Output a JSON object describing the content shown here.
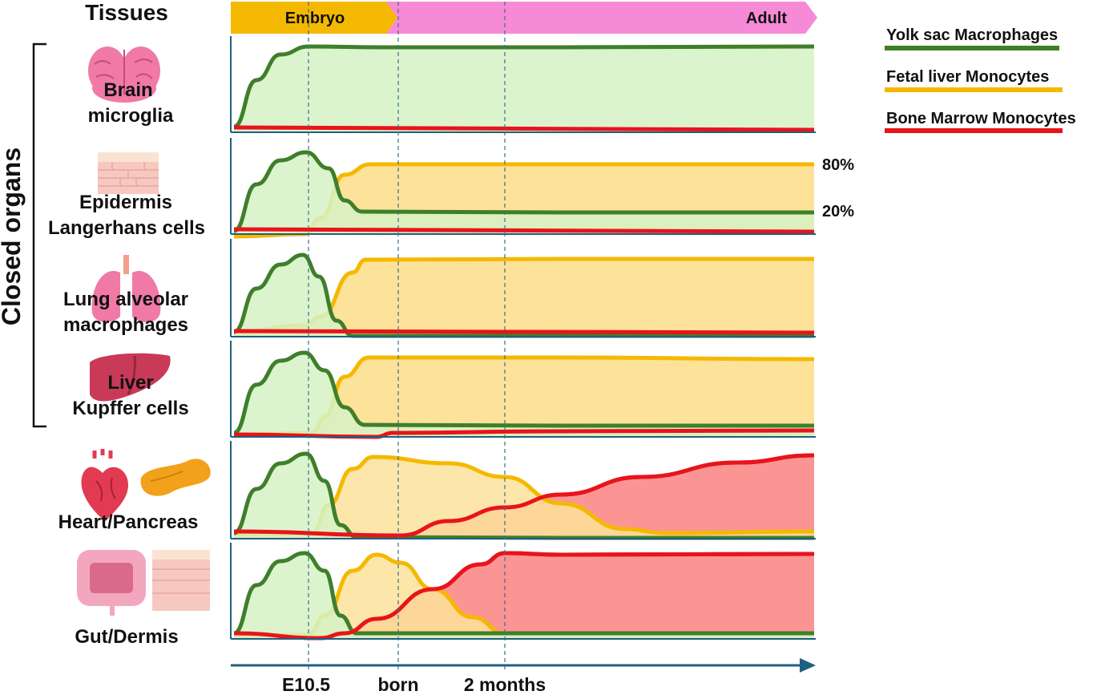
{
  "header": {
    "title": "Tissues",
    "phase_embryo": "Embryo",
    "phase_adult": "Adult"
  },
  "side_label": "Closed organs",
  "legend": [
    {
      "label": "Yolk sac Macrophages",
      "color": "#3f7f2a"
    },
    {
      "label": "Fetal liver Monocytes",
      "color": "#f5b800"
    },
    {
      "label": "Bone Marrow Monocytes",
      "color": "#e8141c"
    }
  ],
  "timeline": {
    "ticks": [
      "E10.5",
      "born",
      "2 months"
    ]
  },
  "tissues": [
    {
      "lines": [
        "Brain",
        "microglia"
      ],
      "icon": "brain-icon"
    },
    {
      "lines": [
        "Epidermis",
        "Langerhans cells"
      ],
      "icon": "skin-icon",
      "annotations": [
        "80%",
        "20%"
      ]
    },
    {
      "lines": [
        "Lung alveolar",
        "macrophages"
      ],
      "icon": "lungs-icon"
    },
    {
      "lines": [
        "Liver",
        "Kupffer cells"
      ],
      "icon": "liver-icon"
    },
    {
      "lines": [
        "Heart/Pancreas"
      ],
      "icon": "heart-icon",
      "icon2": "pancreas-icon"
    },
    {
      "lines": [
        "Gut/Dermis"
      ],
      "icon": "intestine-icon",
      "icon2": "dermis-icon"
    }
  ],
  "colors": {
    "yolk_line": "#3f7f2a",
    "yolk_fill": "#d6f2c6",
    "fetal_line": "#f5b800",
    "fetal_fill": "#fde29a",
    "bm_line": "#e8141c",
    "bm_fill": "#fb9593",
    "embryo_band": "#f5b800",
    "adult_band": "#f78ad6",
    "axis": "#1f5f7f"
  }
}
